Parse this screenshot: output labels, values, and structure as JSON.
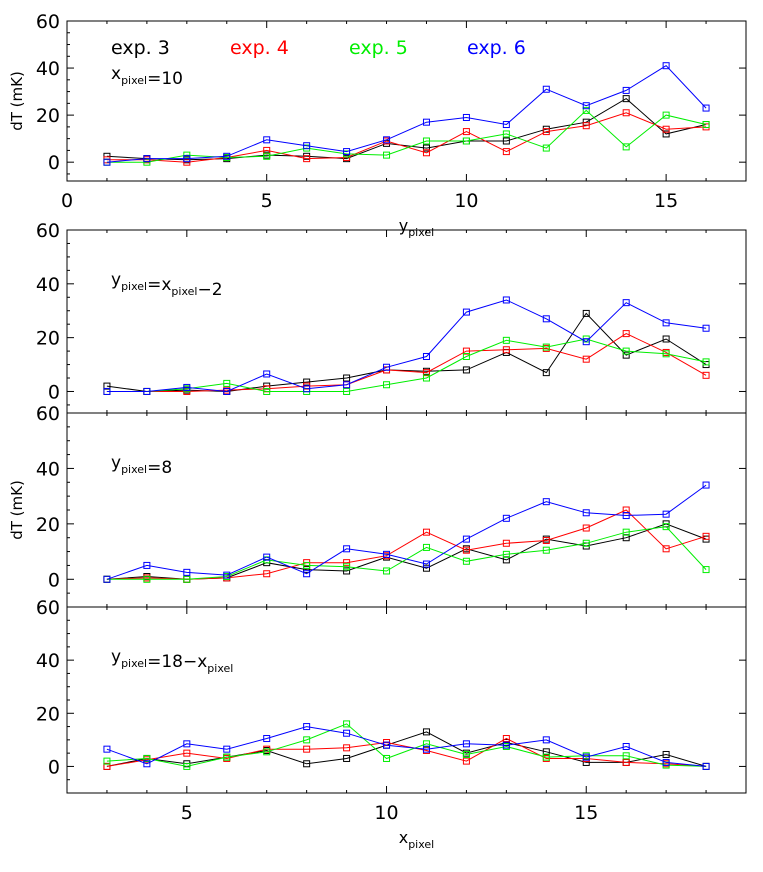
{
  "figure_title": "",
  "colors": {
    "exp. 3": "#000000",
    "exp. 4": "#ff0000",
    "exp. 5": "#00ee00",
    "exp. 6": "#0000ff"
  },
  "chart_data": [
    {
      "type": "line",
      "annotation": "x=10",
      "ylabel": "dT  (mK)",
      "xlabel": "y",
      "xlabel_sub": "pixel",
      "ylim": [
        -8,
        60
      ],
      "xlim": [
        0,
        17
      ],
      "yticks": [
        0,
        20,
        40,
        60
      ],
      "xticks": [
        0,
        5,
        10,
        15
      ],
      "legend": [
        "exp. 3",
        "exp. 4",
        "exp. 5",
        "exp. 6"
      ],
      "x": [
        1,
        2,
        3,
        4,
        5,
        6,
        7,
        8,
        9,
        10,
        11,
        12,
        13,
        14,
        15,
        16
      ],
      "series": [
        {
          "name": "exp. 3",
          "values": [
            2.5,
            1.5,
            1,
            1.5,
            3,
            2.5,
            1.5,
            8,
            6,
            9,
            9,
            14,
            17,
            27,
            12,
            16
          ]
        },
        {
          "name": "exp. 4",
          "values": [
            1,
            1,
            0,
            2,
            5,
            1.5,
            2,
            9,
            4,
            13,
            4.5,
            13,
            15.5,
            21,
            14,
            15
          ]
        },
        {
          "name": "exp. 5",
          "values": [
            0,
            0,
            3,
            2,
            2.5,
            6,
            3.5,
            3,
            9,
            9,
            12,
            6,
            22,
            6.5,
            20,
            16
          ]
        },
        {
          "name": "exp. 6",
          "values": [
            0,
            1.5,
            1.5,
            2.5,
            9.5,
            7,
            4.5,
            9.5,
            17,
            19,
            16,
            31,
            24,
            30.5,
            41,
            23
          ]
        }
      ]
    },
    {
      "type": "line",
      "annotation": "y=x−2",
      "ylabel": "",
      "xlabel": "",
      "ylim": [
        -8,
        60
      ],
      "xlim": [
        2,
        19
      ],
      "yticks": [
        0,
        20,
        40,
        60
      ],
      "xticks": [],
      "x": [
        3,
        4,
        5,
        6,
        7,
        8,
        9,
        10,
        11,
        12,
        13,
        14,
        15,
        16,
        17,
        18
      ],
      "series": [
        {
          "name": "exp. 3",
          "values": [
            2,
            0,
            0.5,
            0,
            2,
            3.5,
            5,
            8,
            7.5,
            8,
            14.5,
            7,
            29,
            13.5,
            19.5,
            10
          ]
        },
        {
          "name": "exp. 4",
          "values": [
            0,
            0,
            0,
            0.5,
            1,
            2,
            2.5,
            8,
            7,
            15,
            15.5,
            16,
            12,
            21.5,
            14.5,
            6
          ]
        },
        {
          "name": "exp. 5",
          "values": [
            0,
            0,
            1,
            3,
            0,
            0,
            0,
            2.5,
            5,
            13,
            19,
            16.5,
            19.5,
            15,
            14,
            11
          ]
        },
        {
          "name": "exp. 6",
          "values": [
            0,
            0,
            1.5,
            0,
            6.5,
            1,
            2.5,
            9,
            13,
            29.5,
            34,
            27,
            18.5,
            33,
            25.5,
            23.5
          ]
        }
      ]
    },
    {
      "type": "line",
      "annotation": "y=8",
      "ylabel": "dT  (mK)",
      "xlabel": "",
      "ylim": [
        -10,
        60
      ],
      "xlim": [
        2,
        19
      ],
      "yticks": [
        0,
        20,
        40,
        60
      ],
      "xticks": [],
      "x": [
        3,
        4,
        5,
        6,
        7,
        8,
        9,
        10,
        11,
        12,
        13,
        14,
        15,
        16,
        17,
        18
      ],
      "series": [
        {
          "name": "exp. 3",
          "values": [
            0,
            1,
            0,
            0.5,
            6,
            3.5,
            3,
            8,
            4,
            11,
            7,
            14.5,
            12,
            15,
            20,
            14.5
          ]
        },
        {
          "name": "exp. 4",
          "values": [
            0,
            0.5,
            0,
            0.5,
            2,
            6,
            6,
            8.5,
            17,
            10.5,
            13,
            14,
            18.5,
            25,
            11,
            15.5
          ]
        },
        {
          "name": "exp. 5",
          "values": [
            0,
            0,
            0,
            1,
            7,
            5,
            4.5,
            3,
            11.5,
            6.5,
            9,
            10.5,
            13,
            17,
            19,
            3.5
          ]
        },
        {
          "name": "exp. 6",
          "values": [
            0,
            5,
            2.5,
            1.5,
            8,
            2,
            11,
            9,
            5.5,
            14.5,
            22,
            28,
            24,
            23,
            23.5,
            34
          ]
        }
      ]
    },
    {
      "type": "line",
      "annotation": "y=18−x",
      "ylabel": "",
      "xlabel": "x",
      "xlabel_sub": "pixel",
      "ylim": [
        -10,
        60
      ],
      "xlim": [
        2,
        19
      ],
      "yticks": [
        0,
        20,
        40,
        60
      ],
      "xticks": [
        5,
        10,
        15
      ],
      "x": [
        3,
        4,
        5,
        6,
        7,
        8,
        9,
        10,
        11,
        12,
        13,
        14,
        15,
        16,
        17,
        18
      ],
      "series": [
        {
          "name": "exp. 3",
          "values": [
            0,
            3,
            1,
            3.5,
            6,
            1,
            3,
            8,
            13,
            5,
            9,
            5.5,
            1.5,
            1.5,
            4.5,
            0
          ]
        },
        {
          "name": "exp. 4",
          "values": [
            0,
            2.5,
            5,
            3,
            6.5,
            6.5,
            7,
            9,
            6,
            2,
            10.5,
            3,
            3,
            1.5,
            1,
            0
          ]
        },
        {
          "name": "exp. 5",
          "values": [
            2,
            3,
            0,
            3.5,
            5.5,
            10,
            16,
            3,
            8.5,
            4.5,
            7.5,
            3.5,
            4,
            4,
            0.5,
            0
          ]
        },
        {
          "name": "exp. 6",
          "values": [
            6.5,
            1,
            8.5,
            6.5,
            10.5,
            15,
            12.5,
            8,
            6.5,
            8.5,
            8,
            10,
            3.5,
            7.5,
            1.5,
            0
          ]
        }
      ]
    }
  ]
}
